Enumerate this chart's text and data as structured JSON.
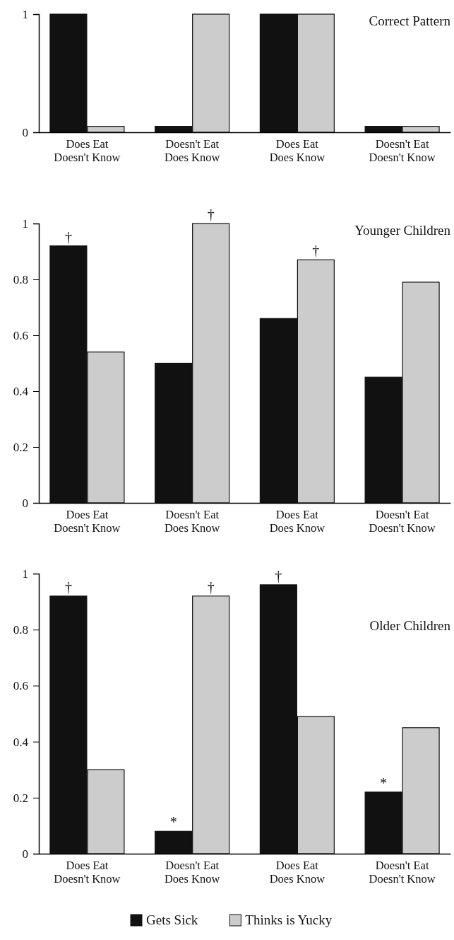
{
  "chart_data": [
    {
      "type": "bar",
      "title": "Correct Pattern",
      "categories": [
        "Does Eat\nDoesn't Know",
        "Doesn't Eat\nDoes Know",
        "Does Eat\nDoes Know",
        "Doesn't Eat\nDoesn't Know"
      ],
      "series": [
        {
          "color": "#111111",
          "values": [
            1,
            0.05,
            1,
            0.05
          ]
        },
        {
          "color": "#cccccc",
          "values": [
            0.05,
            1,
            1,
            0.05
          ]
        }
      ],
      "ylim": [
        0,
        1
      ],
      "yticks": [
        0,
        1
      ],
      "grid": false,
      "legend": false
    },
    {
      "type": "bar",
      "title": "Younger Children",
      "categories": [
        "Does Eat\nDoesn't Know",
        "Doesn't Eat\nDoes Know",
        "Does Eat\nDoes Know",
        "Doesn't Eat\nDoesn't Know"
      ],
      "series": [
        {
          "color": "#111111",
          "values": [
            0.92,
            0.5,
            0.66,
            0.45
          ]
        },
        {
          "color": "#cccccc",
          "values": [
            0.54,
            1.0,
            0.87,
            0.79
          ]
        }
      ],
      "ylim": [
        0,
        1
      ],
      "yticks": [
        0,
        0.2,
        0.4,
        0.6,
        0.8,
        1
      ],
      "grid": false,
      "legend": false,
      "annotations": [
        {
          "text": "†",
          "x": "Does Eat\nDoesn't Know",
          "y": 0.92
        },
        {
          "text": "†",
          "x": "Doesn't Eat\nDoes Know",
          "y": 1.0
        },
        {
          "text": "†",
          "x": "Does Eat\nDoes Know",
          "y": 0.87
        }
      ]
    },
    {
      "type": "bar",
      "title": "Older Children",
      "categories": [
        "Does Eat\nDoesn't Know",
        "Doesn't Eat\nDoes Know",
        "Does Eat\nDoes Know",
        "Doesn't Eat\nDoesn't Know"
      ],
      "series": [
        {
          "name": "Gets Sick",
          "color": "#111111",
          "values": [
            0.92,
            0.08,
            0.96,
            0.22
          ]
        },
        {
          "name": "Thinks is Yucky",
          "color": "#cccccc",
          "values": [
            0.3,
            0.92,
            0.49,
            0.45
          ]
        }
      ],
      "ylim": [
        0,
        1
      ],
      "yticks": [
        0,
        0.2,
        0.4,
        0.6,
        0.8,
        1
      ],
      "grid": false,
      "legend": "bottom",
      "annotations": [
        {
          "text": "†",
          "x": "Does Eat\nDoesn't Know",
          "y": 0.92
        },
        {
          "text": "†",
          "x": "Doesn't Eat\nDoes Know",
          "y": 0.92
        },
        {
          "text": "†",
          "x": "Does Eat\nDoes Know",
          "y": 0.96
        },
        {
          "text": "*",
          "x": "Doesn't Eat\nDoes Know",
          "y": 0.08
        },
        {
          "text": "*",
          "x": "Doesn't Eat\nDoesn't Know",
          "y": 0.22
        }
      ]
    }
  ]
}
